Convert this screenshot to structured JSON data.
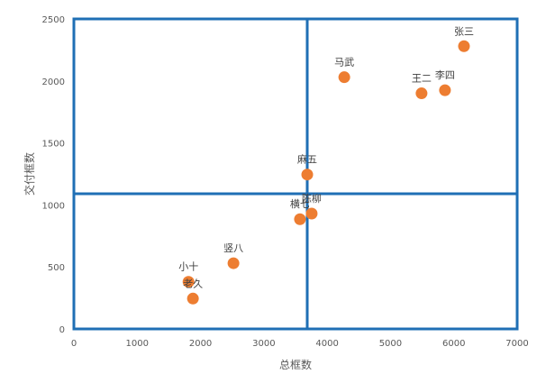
{
  "chart_data": {
    "type": "scatter",
    "title": "",
    "xlabel": "总框数",
    "ylabel": "交付框数",
    "xlim": [
      0,
      7000
    ],
    "ylim": [
      0,
      2500
    ],
    "xticks": [
      0,
      1000,
      2000,
      3000,
      4000,
      5000,
      6000,
      7000
    ],
    "yticks": [
      0,
      500,
      1000,
      1500,
      2000,
      2500
    ],
    "grid": false,
    "reference_lines": {
      "x": 3685,
      "y": 1090
    },
    "colors": {
      "point": "#ED7D31",
      "frame": "#1F6FB5"
    },
    "points": [
      {
        "label": "张三",
        "x": 6160,
        "y": 2280
      },
      {
        "label": "马武",
        "x": 4270,
        "y": 2030
      },
      {
        "label": "王二",
        "x": 5490,
        "y": 1900
      },
      {
        "label": "李四",
        "x": 5860,
        "y": 1925
      },
      {
        "label": "麻五",
        "x": 3685,
        "y": 1245
      },
      {
        "label": "陈柳",
        "x": 3755,
        "y": 930
      },
      {
        "label": "横七",
        "x": 3570,
        "y": 885
      },
      {
        "label": "竖八",
        "x": 2520,
        "y": 530
      },
      {
        "label": "小十",
        "x": 1810,
        "y": 380
      },
      {
        "label": "老久",
        "x": 1880,
        "y": 245
      }
    ]
  }
}
